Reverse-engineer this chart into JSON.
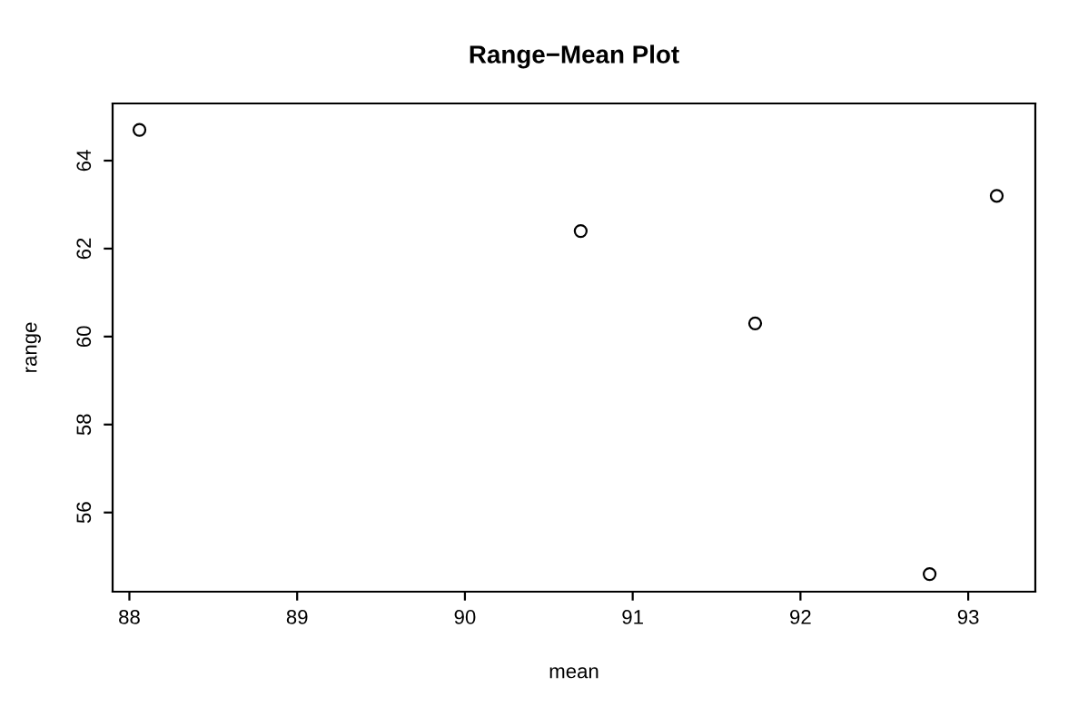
{
  "chart_data": {
    "type": "scatter",
    "title": "Range−Mean Plot",
    "xlabel": "mean",
    "ylabel": "range",
    "x": [
      88.06,
      90.69,
      91.73,
      92.77,
      93.17
    ],
    "values": [
      64.7,
      62.4,
      60.3,
      54.6,
      63.2
    ],
    "color": "#000000",
    "marker": "circle",
    "xlim": [
      87.9,
      93.4
    ],
    "ylim": [
      54.2,
      65.3
    ],
    "xticks": [
      88,
      89,
      90,
      91,
      92,
      93
    ],
    "yticks": [
      56,
      58,
      60,
      62,
      64
    ],
    "grid": false,
    "legend": false
  }
}
